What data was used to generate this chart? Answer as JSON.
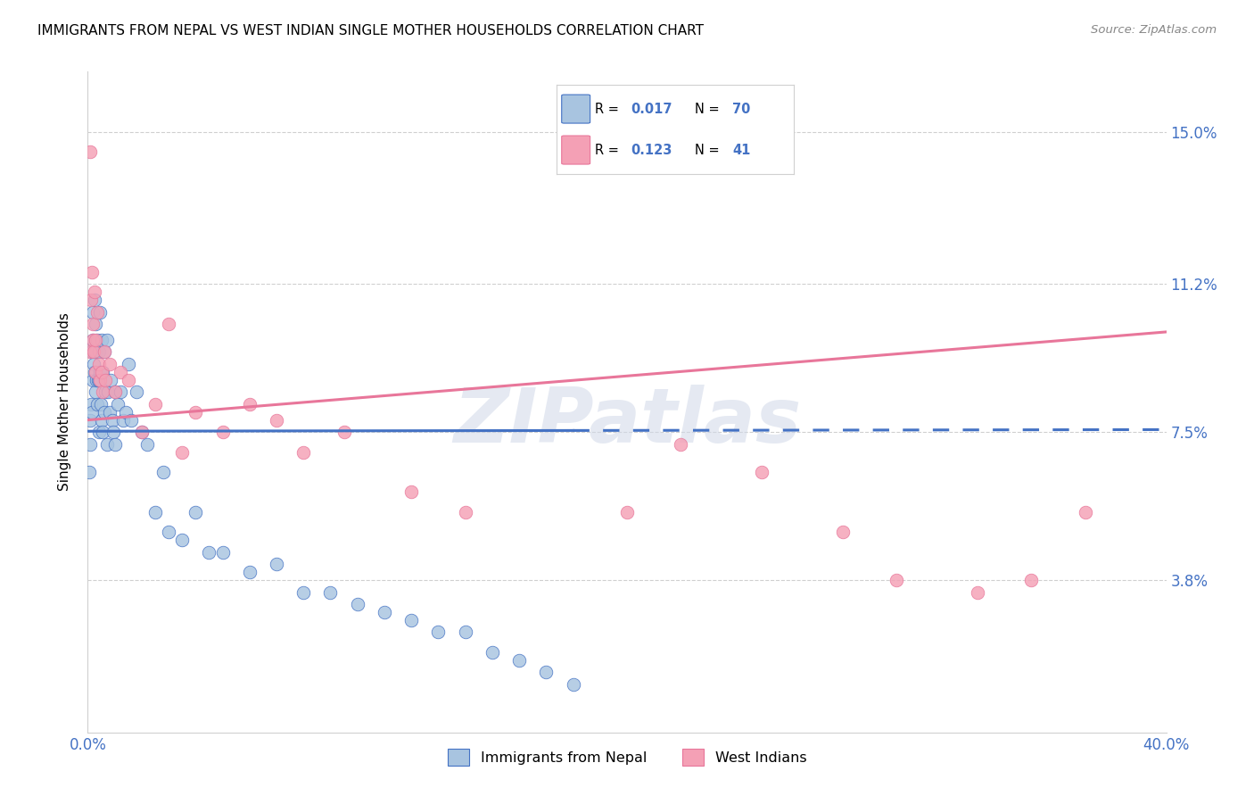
{
  "title": "IMMIGRANTS FROM NEPAL VS WEST INDIAN SINGLE MOTHER HOUSEHOLDS CORRELATION CHART",
  "source": "Source: ZipAtlas.com",
  "ylabel": "Single Mother Households",
  "ytick_values": [
    3.8,
    7.5,
    11.2,
    15.0
  ],
  "ytick_labels": [
    "3.8%",
    "7.5%",
    "11.2%",
    "15.0%"
  ],
  "xlim": [
    0.0,
    40.0
  ],
  "ylim": [
    0.0,
    16.5
  ],
  "nepal_scatter_color": "#a8c4e0",
  "nepal_line_color": "#4472c4",
  "west_scatter_color": "#f4a0b5",
  "west_line_color": "#e8769a",
  "grid_color": "#d0d0d0",
  "background_color": "#ffffff",
  "watermark": "ZIPatlas",
  "nepal_R": "0.017",
  "nepal_N": "70",
  "west_R": "0.123",
  "west_N": "41",
  "legend1_label": "Immigrants from Nepal",
  "legend2_label": "West Indians",
  "nepal_x": [
    0.05,
    0.08,
    0.1,
    0.12,
    0.15,
    0.15,
    0.18,
    0.2,
    0.2,
    0.22,
    0.25,
    0.25,
    0.28,
    0.3,
    0.3,
    0.32,
    0.35,
    0.35,
    0.38,
    0.4,
    0.4,
    0.42,
    0.45,
    0.45,
    0.48,
    0.5,
    0.5,
    0.55,
    0.55,
    0.6,
    0.6,
    0.65,
    0.7,
    0.72,
    0.75,
    0.8,
    0.85,
    0.9,
    0.95,
    1.0,
    1.0,
    1.1,
    1.2,
    1.3,
    1.4,
    1.5,
    1.6,
    1.8,
    2.0,
    2.2,
    2.5,
    2.8,
    3.0,
    3.5,
    4.0,
    4.5,
    5.0,
    6.0,
    7.0,
    8.0,
    9.0,
    10.0,
    11.0,
    12.0,
    13.0,
    14.0,
    15.0,
    16.0,
    17.0,
    18.0
  ],
  "nepal_y": [
    6.5,
    7.2,
    7.8,
    8.2,
    9.5,
    8.0,
    9.8,
    10.5,
    8.8,
    9.2,
    10.8,
    9.0,
    8.5,
    10.2,
    9.5,
    8.8,
    9.8,
    8.2,
    8.8,
    9.5,
    7.5,
    8.8,
    10.5,
    9.0,
    8.2,
    9.8,
    7.8,
    9.0,
    7.5,
    9.5,
    8.0,
    8.5,
    9.8,
    7.2,
    8.5,
    8.0,
    8.8,
    7.8,
    7.5,
    8.5,
    7.2,
    8.2,
    8.5,
    7.8,
    8.0,
    9.2,
    7.8,
    8.5,
    7.5,
    7.2,
    5.5,
    6.5,
    5.0,
    4.8,
    5.5,
    4.5,
    4.5,
    4.0,
    4.2,
    3.5,
    3.5,
    3.2,
    3.0,
    2.8,
    2.5,
    2.5,
    2.0,
    1.8,
    1.5,
    1.2
  ],
  "west_x": [
    0.08,
    0.1,
    0.12,
    0.15,
    0.18,
    0.2,
    0.22,
    0.25,
    0.28,
    0.3,
    0.35,
    0.4,
    0.45,
    0.5,
    0.55,
    0.6,
    0.65,
    0.8,
    1.0,
    1.2,
    1.5,
    2.0,
    2.5,
    3.0,
    3.5,
    4.0,
    5.0,
    6.0,
    7.0,
    8.0,
    9.5,
    12.0,
    14.0,
    20.0,
    22.0,
    25.0,
    28.0,
    30.0,
    33.0,
    35.0,
    37.0
  ],
  "west_y": [
    14.5,
    9.5,
    10.8,
    11.5,
    9.8,
    10.2,
    9.5,
    11.0,
    9.0,
    9.8,
    10.5,
    9.2,
    8.8,
    9.0,
    8.5,
    9.5,
    8.8,
    9.2,
    8.5,
    9.0,
    8.8,
    7.5,
    8.2,
    10.2,
    7.0,
    8.0,
    7.5,
    8.2,
    7.8,
    7.0,
    7.5,
    6.0,
    5.5,
    5.5,
    7.2,
    6.5,
    5.0,
    3.8,
    3.5,
    3.8,
    5.5
  ],
  "nepal_line_intercept": 7.52,
  "nepal_line_slope": 0.001,
  "west_line_intercept": 7.8,
  "west_line_slope": 0.055,
  "nepal_solid_end": 18.0
}
